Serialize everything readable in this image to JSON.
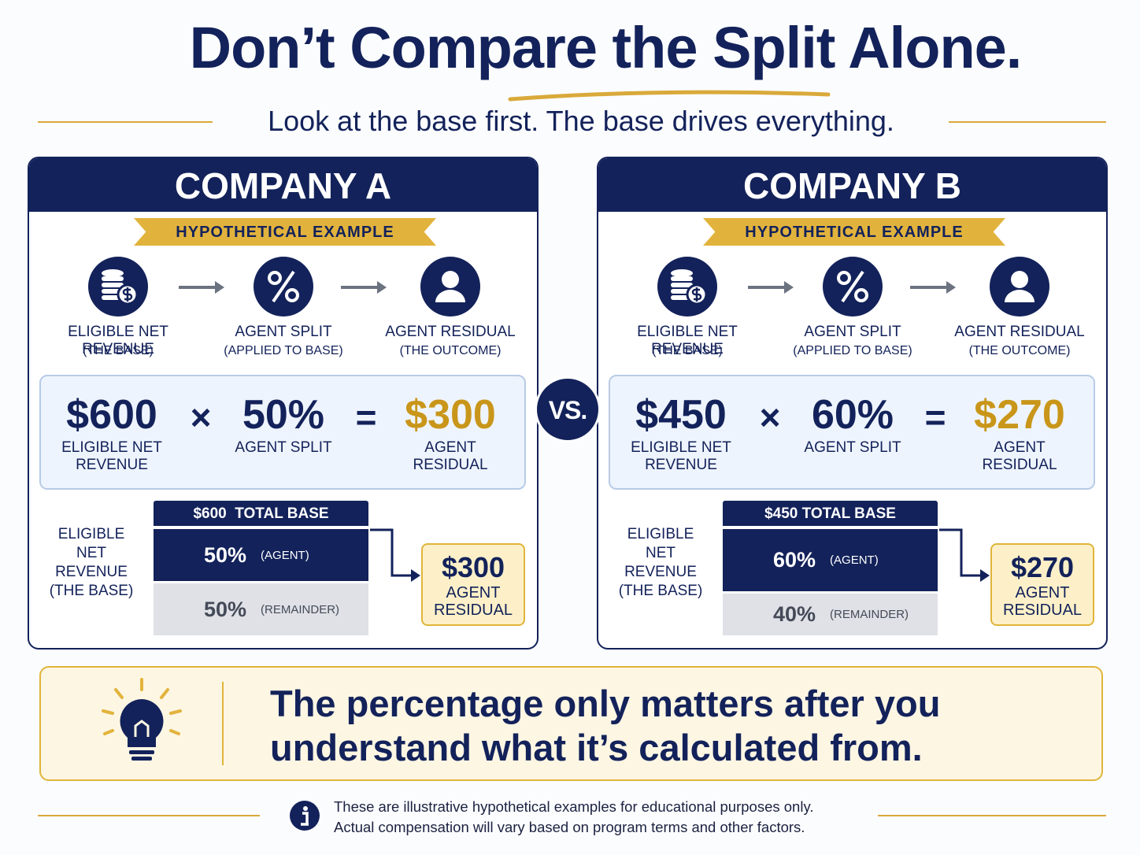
{
  "title": "Don’t Compare the Split Alone.",
  "subtitle": "Look at the base first. The base drives everything.",
  "vs": "VS.",
  "companies": [
    {
      "name": "COMPANY A",
      "badge": "HYPOTHETICAL EXAMPLE",
      "steps": [
        {
          "label": "ELIGIBLE NET REVENUE",
          "sub": "(THE BASE)"
        },
        {
          "label": "AGENT SPLIT",
          "sub": "(APPLIED TO BASE)"
        },
        {
          "label": "AGENT RESIDUAL",
          "sub": "(THE OUTCOME)"
        }
      ],
      "equation": {
        "terms": [
          {
            "value": "$600",
            "label": "ELIGIBLE NET REVENUE"
          },
          {
            "value": "50%",
            "label": "AGENT SPLIT"
          },
          {
            "value": "$300",
            "label": "AGENT RESIDUAL"
          }
        ],
        "operators": [
          "×",
          "="
        ]
      },
      "bar": {
        "header": "$600  TOTAL BASE",
        "side_label": "ELIGIBLE NET REVENUE (THE BASE)",
        "segments": [
          {
            "value": "50%",
            "label": "(AGENT)"
          },
          {
            "value": "50%",
            "label": "(REMAINDER)"
          }
        ]
      },
      "result": {
        "value": "$300",
        "label": "AGENT RESIDUAL"
      }
    },
    {
      "name": "COMPANY B",
      "badge": "HYPOTHETICAL EXAMPLE",
      "steps": [
        {
          "label": "ELIGIBLE NET REVENUE",
          "sub": "(THE BASE)"
        },
        {
          "label": "AGENT SPLIT",
          "sub": "(APPLIED TO BASE)"
        },
        {
          "label": "AGENT RESIDUAL",
          "sub": "(THE OUTCOME)"
        }
      ],
      "equation": {
        "terms": [
          {
            "value": "$450",
            "label": "ELIGIBLE NET REVENUE"
          },
          {
            "value": "60%",
            "label": "AGENT SPLIT"
          },
          {
            "value": "$270",
            "label": "AGENT RESIDUAL"
          }
        ],
        "operators": [
          "×",
          "="
        ]
      },
      "bar": {
        "header": "$450 TOTAL BASE",
        "side_label": "ELIGIBLE NET REVENUE (THE BASE)",
        "segments": [
          {
            "value": "60%",
            "label": "(AGENT)"
          },
          {
            "value": "40%",
            "label": "(REMAINDER)"
          }
        ]
      },
      "result": {
        "value": "$270",
        "label": "AGENT RESIDUAL"
      }
    }
  ],
  "callout": "The percentage only matters after you understand what it’s calculated from.",
  "footnote": [
    "These are illustrative hypothetical examples for educational purposes only.",
    "Actual compensation will vary based on program terms and other factors."
  ]
}
